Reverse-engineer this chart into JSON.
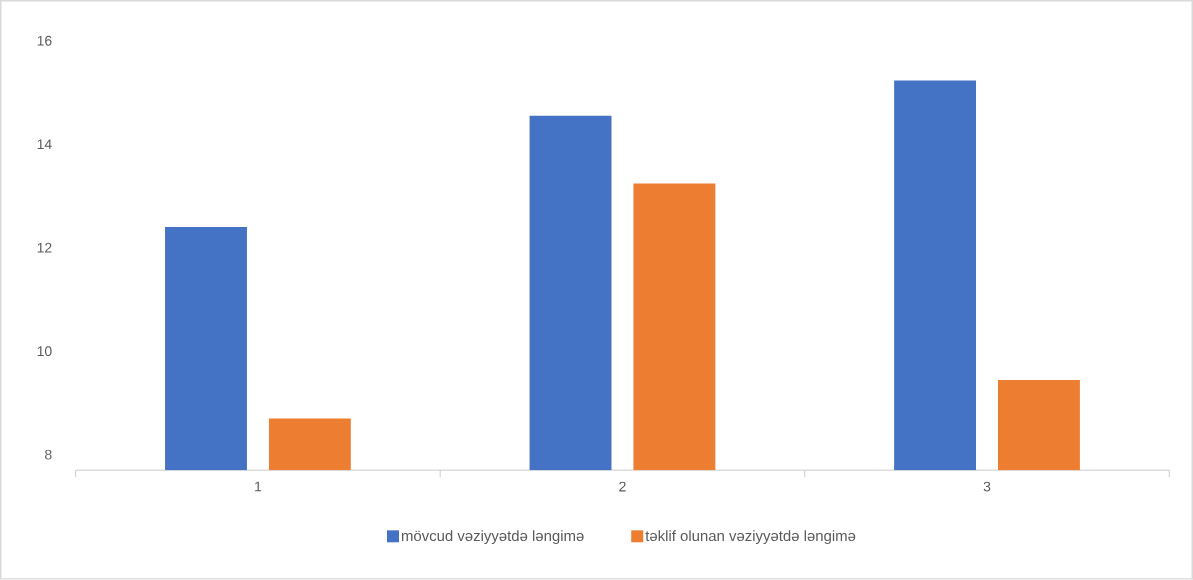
{
  "chart_data": {
    "type": "bar",
    "categories": [
      "1",
      "2",
      "3"
    ],
    "series": [
      {
        "name": "mövcud vəziyyətdə ləngimə",
        "color": "#4472c4",
        "values": [
          12.4,
          14.55,
          15.23
        ]
      },
      {
        "name": "təklif olunan  vəziyyətdə ləngimə",
        "color": "#ed7d31",
        "values": [
          8.7,
          13.24,
          9.44
        ]
      }
    ],
    "ylim": [
      7.7,
      16
    ],
    "yticks": [
      8,
      10,
      12,
      14,
      16
    ],
    "legend": "bottom"
  }
}
